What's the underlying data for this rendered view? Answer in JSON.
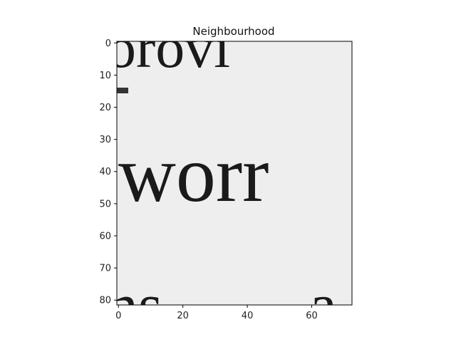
{
  "chart_data": {
    "type": "heatmap",
    "title": "Neighbourhood",
    "xlabel": "",
    "ylabel": "",
    "x_ticks": [
      0,
      20,
      40,
      60
    ],
    "y_ticks": [
      0,
      10,
      20,
      30,
      40,
      50,
      60,
      70,
      80
    ],
    "xlim": [
      -0.5,
      72.5
    ],
    "ylim": [
      81.5,
      -0.5
    ],
    "grid": false,
    "colormap": "gray",
    "image_content": {
      "description_lines": [
        "orovi",
        "worr",
        "ns  a"
      ],
      "background_color": "#eeeeee",
      "ink_color": "#1a1a1a"
    }
  }
}
